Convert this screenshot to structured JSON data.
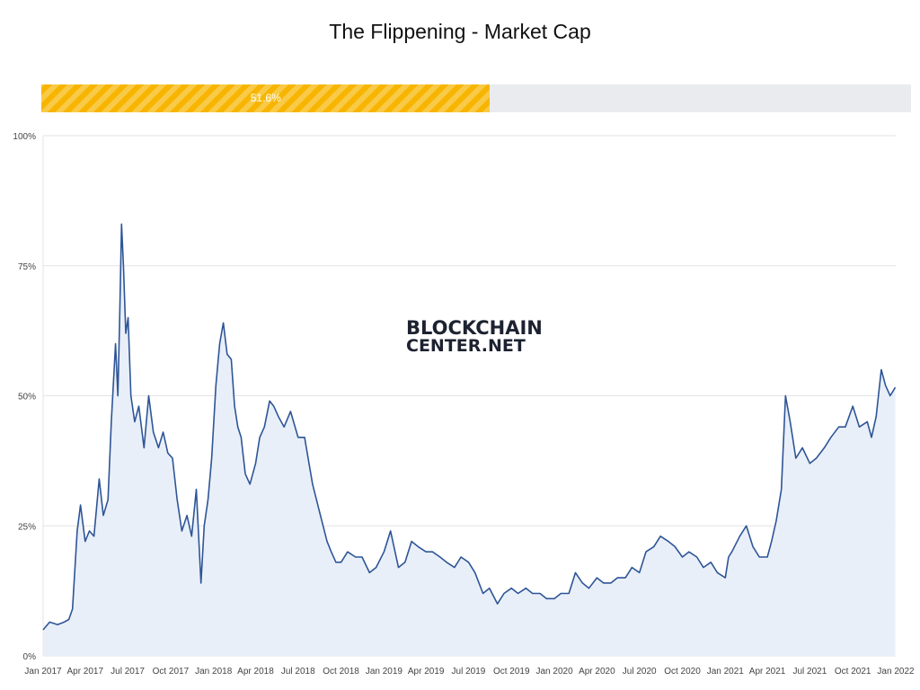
{
  "title": "The Flippening - Market Cap",
  "progress": {
    "value": 51.6,
    "label": "51.6%",
    "color": "#f7b500",
    "track_color": "#e9ebee"
  },
  "watermark": {
    "line1": "BLOCKCHAIN",
    "line2": "CENTER.NET"
  },
  "chart_data": {
    "type": "area",
    "title": "The Flippening - Market Cap",
    "xlabel": "",
    "ylabel": "",
    "x_range": [
      "2017-01-01",
      "2022-01-01"
    ],
    "ylim": [
      0,
      100
    ],
    "y_ticks": [
      0,
      25,
      50,
      75,
      100
    ],
    "y_tick_labels": [
      "0%",
      "25%",
      "50%",
      "75%",
      "100%"
    ],
    "x_ticks": [
      "2017-01-01",
      "2017-04-01",
      "2017-07-01",
      "2017-10-01",
      "2018-01-01",
      "2018-04-01",
      "2018-07-01",
      "2018-10-01",
      "2019-01-01",
      "2019-04-01",
      "2019-07-01",
      "2019-10-01",
      "2020-01-01",
      "2020-04-01",
      "2020-07-01",
      "2020-10-01",
      "2021-01-01",
      "2021-04-01",
      "2021-07-01",
      "2021-10-01",
      "2022-01-01"
    ],
    "x_tick_labels": [
      "Jan 2017",
      "Apr 2017",
      "Jul 2017",
      "Oct 2017",
      "Jan 2018",
      "Apr 2018",
      "Jul 2018",
      "Oct 2018",
      "Jan 2019",
      "Apr 2019",
      "Jul 2019",
      "Oct 2019",
      "Jan 2020",
      "Apr 2020",
      "Jul 2020",
      "Oct 2020",
      "Jan 2021",
      "Apr 2021",
      "Jul 2021",
      "Oct 2021",
      "Jan 2022"
    ],
    "grid": true,
    "colors": {
      "line": "#2e5597",
      "fill": "#e9eff8",
      "grid": "#e3e3e3"
    },
    "series": [
      {
        "x": [
          "2017-01-01",
          "2017-01-15",
          "2017-02-01",
          "2017-02-15",
          "2017-02-25",
          "2017-03-05",
          "2017-03-15",
          "2017-03-22",
          "2017-04-01",
          "2017-04-10",
          "2017-04-20",
          "2017-05-01",
          "2017-05-10",
          "2017-05-20",
          "2017-05-27",
          "2017-06-05",
          "2017-06-10",
          "2017-06-14",
          "2017-06-18",
          "2017-06-22",
          "2017-06-27",
          "2017-07-02",
          "2017-07-08",
          "2017-07-16",
          "2017-07-25",
          "2017-08-05",
          "2017-08-15",
          "2017-08-25",
          "2017-09-05",
          "2017-09-15",
          "2017-09-25",
          "2017-10-05",
          "2017-10-15",
          "2017-10-25",
          "2017-11-05",
          "2017-11-15",
          "2017-11-25",
          "2017-12-05",
          "2017-12-12",
          "2017-12-20",
          "2017-12-28",
          "2018-01-06",
          "2018-01-14",
          "2018-01-22",
          "2018-01-30",
          "2018-02-08",
          "2018-02-15",
          "2018-02-22",
          "2018-03-01",
          "2018-03-10",
          "2018-03-20",
          "2018-04-01",
          "2018-04-10",
          "2018-04-20",
          "2018-05-01",
          "2018-05-10",
          "2018-05-20",
          "2018-06-01",
          "2018-06-15",
          "2018-07-01",
          "2018-07-15",
          "2018-08-01",
          "2018-08-15",
          "2018-09-01",
          "2018-09-10",
          "2018-09-20",
          "2018-10-01",
          "2018-10-15",
          "2018-11-01",
          "2018-11-15",
          "2018-12-01",
          "2018-12-15",
          "2019-01-01",
          "2019-01-15",
          "2019-02-01",
          "2019-02-15",
          "2019-03-01",
          "2019-03-15",
          "2019-04-01",
          "2019-04-15",
          "2019-05-01",
          "2019-05-15",
          "2019-06-01",
          "2019-06-15",
          "2019-07-01",
          "2019-07-15",
          "2019-08-01",
          "2019-08-15",
          "2019-09-01",
          "2019-09-15",
          "2019-10-01",
          "2019-10-15",
          "2019-11-01",
          "2019-11-15",
          "2019-12-01",
          "2019-12-15",
          "2020-01-01",
          "2020-01-15",
          "2020-02-01",
          "2020-02-15",
          "2020-03-01",
          "2020-03-15",
          "2020-04-01",
          "2020-04-15",
          "2020-05-01",
          "2020-05-15",
          "2020-06-01",
          "2020-06-15",
          "2020-07-01",
          "2020-07-15",
          "2020-08-01",
          "2020-08-15",
          "2020-09-01",
          "2020-09-15",
          "2020-10-01",
          "2020-10-15",
          "2020-11-01",
          "2020-11-15",
          "2020-12-01",
          "2020-12-15",
          "2021-01-01",
          "2021-01-08",
          "2021-01-15",
          "2021-02-01",
          "2021-02-15",
          "2021-03-01",
          "2021-03-15",
          "2021-04-01",
          "2021-04-10",
          "2021-04-20",
          "2021-05-01",
          "2021-05-10",
          "2021-05-20",
          "2021-06-01",
          "2021-06-15",
          "2021-07-01",
          "2021-07-15",
          "2021-08-01",
          "2021-08-15",
          "2021-09-01",
          "2021-09-15",
          "2021-10-01",
          "2021-10-15",
          "2021-11-01",
          "2021-11-10",
          "2021-11-20",
          "2021-12-01",
          "2021-12-10",
          "2021-12-20",
          "2021-12-31"
        ],
        "y": [
          5,
          6.5,
          6,
          6.5,
          7,
          9,
          24,
          29,
          22,
          24,
          23,
          34,
          27,
          30,
          45,
          60,
          50,
          65,
          83,
          75,
          62,
          65,
          50,
          45,
          48,
          40,
          50,
          43,
          40,
          43,
          39,
          38,
          30,
          24,
          27,
          23,
          32,
          14,
          25,
          30,
          38,
          52,
          60,
          64,
          58,
          57,
          48,
          44,
          42,
          35,
          33,
          37,
          42,
          44,
          49,
          48,
          46,
          44,
          47,
          42,
          42,
          33,
          28,
          22,
          20,
          18,
          18,
          20,
          19,
          19,
          16,
          17,
          20,
          24,
          17,
          18,
          22,
          21,
          20,
          20,
          19,
          18,
          17,
          19,
          18,
          16,
          12,
          13,
          10,
          12,
          13,
          12,
          13,
          12,
          12,
          11,
          11,
          12,
          12,
          16,
          14,
          13,
          15,
          14,
          14,
          15,
          15,
          17,
          16,
          20,
          21,
          23,
          22,
          21,
          19,
          20,
          19,
          17,
          18,
          16,
          15,
          19,
          20,
          23,
          25,
          21,
          19,
          19,
          22,
          26,
          32,
          50,
          45,
          38,
          40,
          37,
          38,
          40,
          42,
          44,
          44,
          48,
          44,
          45,
          42,
          46,
          55,
          52,
          50,
          51.6
        ]
      }
    ]
  }
}
